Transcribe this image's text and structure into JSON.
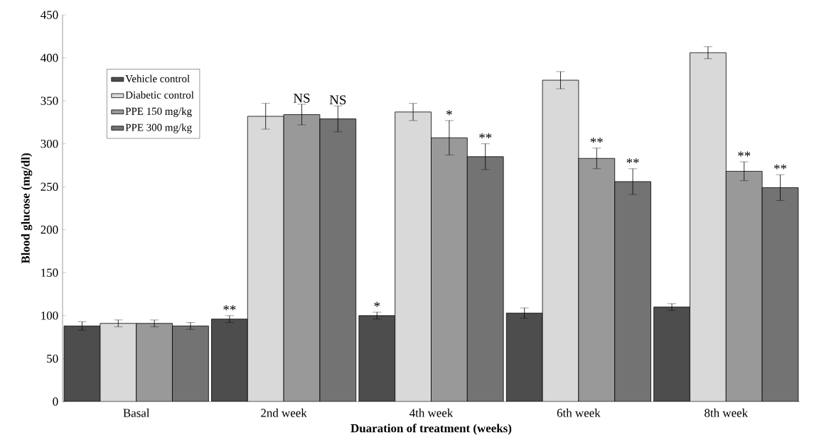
{
  "chart_data": {
    "type": "bar",
    "xlabel": "Duaration of treatment (weeks)",
    "ylabel": "Blood glucose (mg/dl)",
    "categories": [
      "Basal",
      "2nd week",
      "4th week",
      "6th week",
      "8th week"
    ],
    "series": [
      {
        "name": "Vehicle control",
        "color": "#4d4d4d",
        "values": [
          88,
          96,
          100,
          103,
          110
        ],
        "errors": [
          5,
          4,
          4,
          6,
          4
        ]
      },
      {
        "name": "Diabetic control",
        "color": "#d9d9d9",
        "values": [
          91,
          332,
          337,
          374,
          406
        ],
        "errors": [
          4,
          15,
          10,
          10,
          7
        ]
      },
      {
        "name": "PPE 150 mg/kg",
        "color": "#999999",
        "values": [
          91,
          334,
          307,
          283,
          268
        ],
        "errors": [
          4,
          12,
          20,
          12,
          11
        ]
      },
      {
        "name": "PPE 300 mg/kg",
        "color": "#737373",
        "values": [
          88,
          329,
          285,
          256,
          249
        ],
        "errors": [
          4,
          15,
          15,
          15,
          15
        ]
      }
    ],
    "annotations": [
      "**",
      "NS",
      "NS",
      "*",
      "*",
      "**",
      "**",
      "**",
      "**",
      "**"
    ],
    "ylim": [
      0,
      450
    ],
    "yticks": [
      0,
      50,
      100,
      150,
      200,
      250,
      300,
      350,
      400,
      450
    ],
    "grid": false,
    "legend": "top left"
  }
}
